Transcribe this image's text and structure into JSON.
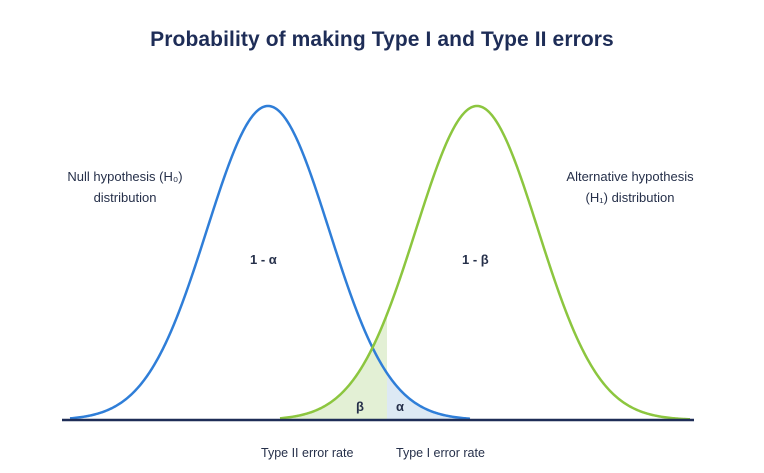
{
  "title": "Probability of making Type I and Type II errors",
  "null_distribution": {
    "label_line1": "Null hypothesis (H₀)",
    "label_line2": "distribution",
    "area_label": "1 - α",
    "color": "#2f7ed8"
  },
  "alternative_distribution": {
    "label_line1": "Alternative hypothesis",
    "label_line2": "(H₁) distribution",
    "area_label": "1 - β",
    "color": "#8cc63f"
  },
  "regions": {
    "beta": "β",
    "alpha": "α",
    "beta_fill": "#e3f0d5",
    "alpha_fill": "#dde9f4"
  },
  "axis_labels": {
    "type2": "Type II error rate",
    "type1": "Type I error rate"
  },
  "axis_color": "#1e2d57"
}
